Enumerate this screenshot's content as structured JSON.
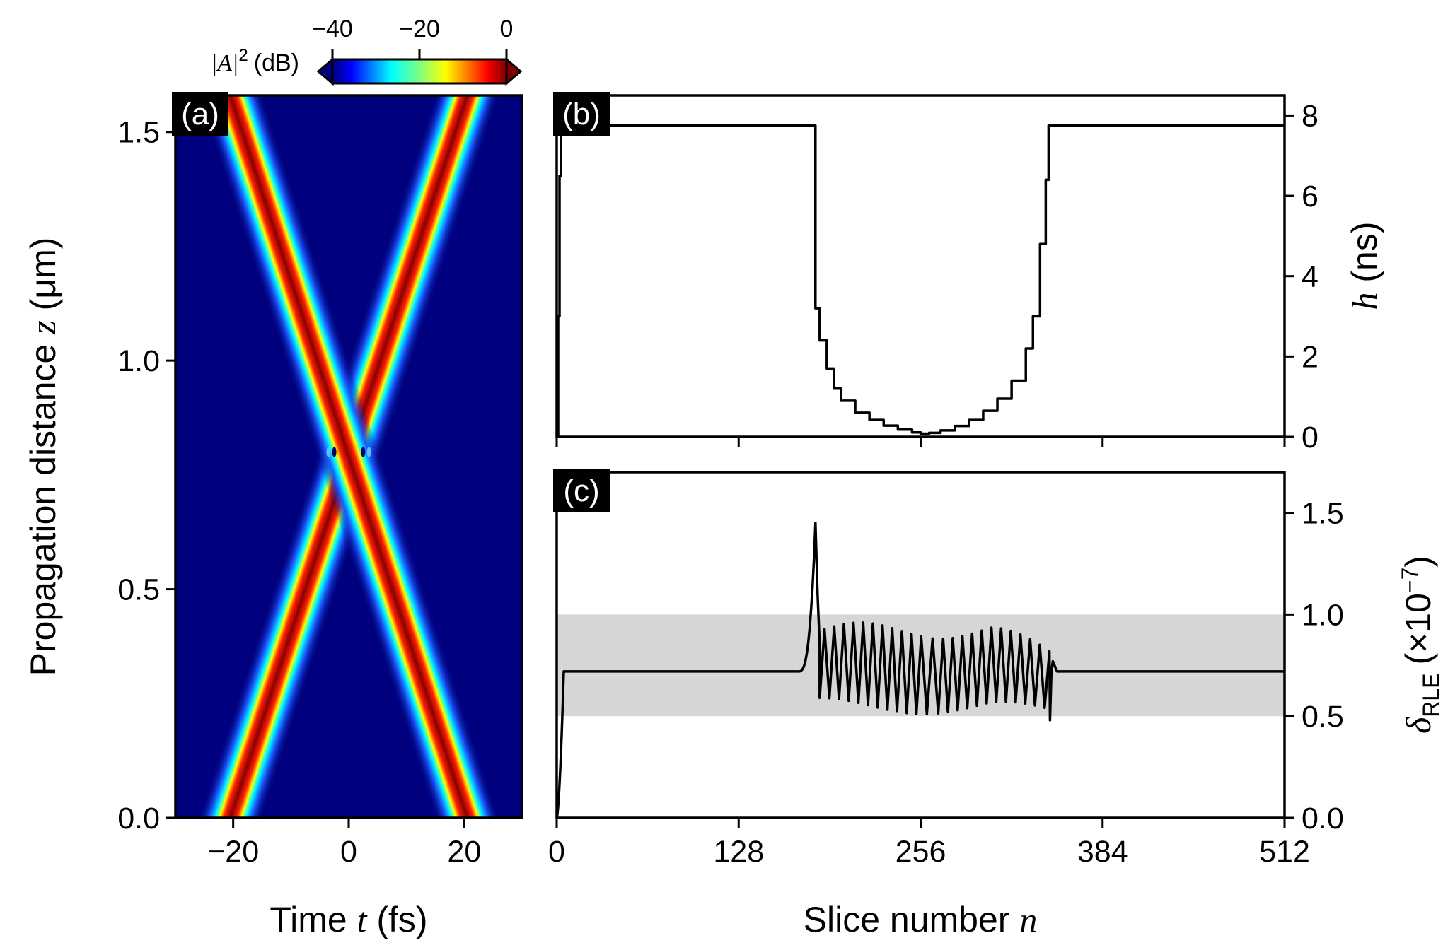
{
  "chart_data": [
    {
      "panel": "(a)",
      "type": "heatmap",
      "xlabel_prefix": "Time",
      "xlabel_var": "t",
      "xlabel_unit": "(fs)",
      "ylabel_prefix": "Propagation distance",
      "ylabel_var": "z",
      "ylabel_unit": "(μm)",
      "xlim": [
        -30,
        30
      ],
      "ylim": [
        0,
        1.58
      ],
      "xticks": [
        -20,
        0,
        20
      ],
      "xtick_labels": [
        "−20",
        "0",
        "20"
      ],
      "yticks": [
        0.0,
        0.5,
        1.0,
        1.5
      ],
      "ytick_labels": [
        "0.0",
        "0.5",
        "1.0",
        "1.5"
      ],
      "colorbar": {
        "label_var": "|A|",
        "label_sup": "2",
        "label_unit": "(dB)",
        "ticks": [
          -40,
          -20,
          0
        ],
        "tick_labels": [
          "−40",
          "−20",
          "0"
        ],
        "range": [
          -40,
          0
        ],
        "colormap": "jet"
      },
      "pulses": [
        {
          "name": "",
          "t_at_z0": -20.5,
          "t_at_zmax": 20.5
        },
        {
          "name": "",
          "t_at_z0": 20.5,
          "t_at_zmax": -20.5
        }
      ],
      "collision_z": 0.8
    },
    {
      "panel": "(b)",
      "type": "line",
      "ylabel_var": "h",
      "ylabel_unit": "(ns)",
      "xlim": [
        0,
        512
      ],
      "ylim": [
        0,
        8.5
      ],
      "yticks": [
        0,
        2,
        4,
        6,
        8
      ],
      "ytick_labels": [
        "0",
        "2",
        "4",
        "6",
        "8"
      ],
      "x": [
        0,
        1,
        2,
        3,
        4,
        5,
        8,
        12,
        20,
        40,
        80,
        120,
        150,
        170,
        180,
        182,
        185,
        190,
        195,
        200,
        210,
        220,
        230,
        240,
        250,
        256,
        262,
        270,
        280,
        290,
        300,
        310,
        320,
        330,
        335,
        340,
        344,
        346,
        350,
        370,
        400,
        450,
        512
      ],
      "values": [
        0,
        3.0,
        6.5,
        7.7,
        7.75,
        7.75,
        7.75,
        7.75,
        7.75,
        7.75,
        7.75,
        7.75,
        7.75,
        7.75,
        7.75,
        3.2,
        2.4,
        1.7,
        1.2,
        0.9,
        0.6,
        0.42,
        0.28,
        0.18,
        0.11,
        0.08,
        0.1,
        0.16,
        0.27,
        0.42,
        0.65,
        0.95,
        1.4,
        2.2,
        3.0,
        4.8,
        6.4,
        7.75,
        7.75,
        7.75,
        7.75,
        7.75,
        7.75
      ]
    },
    {
      "panel": "(c)",
      "type": "line",
      "xlabel_prefix": "Slice number",
      "xlabel_var": "n",
      "ylabel_var": "δ",
      "ylabel_sub": "RLE",
      "ylabel_unit": "(×10",
      "ylabel_exp": "−7",
      "xlim": [
        0,
        512
      ],
      "ylim": [
        0,
        1.7
      ],
      "xticks": [
        0,
        128,
        256,
        384,
        512
      ],
      "xtick_labels": [
        "0",
        "128",
        "256",
        "384",
        "512"
      ],
      "yticks": [
        0.0,
        0.5,
        1.0,
        1.5
      ],
      "ytick_labels": [
        "0.0",
        "0.5",
        "1.0",
        "1.5"
      ],
      "band": [
        0.5,
        1.0
      ],
      "band_color": "#d6d6d6",
      "peak": {
        "x": 182,
        "y": 1.45
      },
      "baseline": 0.72,
      "oscillation_start": 185,
      "oscillation_end": 348
    }
  ]
}
